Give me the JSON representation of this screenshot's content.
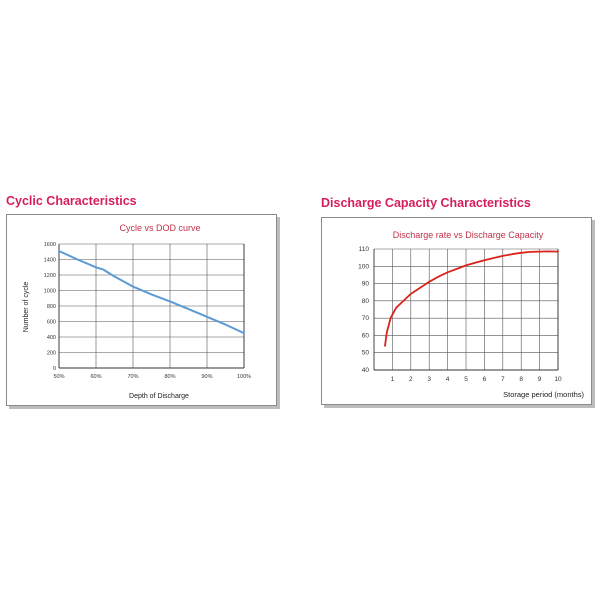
{
  "left": {
    "section_title": "Cyclic Characteristics",
    "chart_data": {
      "type": "line",
      "title": "Cycle vs DOD curve",
      "xlabel": "Depth of Discharge",
      "ylabel": "Number of cycle",
      "x_ticks": [
        "50%",
        "60%",
        "70%",
        "80%",
        "90%",
        "100%"
      ],
      "y_ticks": [
        "0",
        "200",
        "400",
        "600",
        "800",
        "1000",
        "1200",
        "1400",
        "1600"
      ],
      "xlim": [
        50,
        100
      ],
      "ylim": [
        0,
        1600
      ],
      "grid": true,
      "series": [
        {
          "color": "#5b9bd5",
          "x": [
            50,
            55,
            60,
            62,
            65,
            70,
            75,
            80,
            85,
            90,
            95,
            100
          ],
          "y": [
            1510,
            1400,
            1300,
            1270,
            1180,
            1050,
            950,
            860,
            760,
            660,
            560,
            450
          ]
        }
      ]
    }
  },
  "right": {
    "section_title": "Discharge Capacity Characteristics",
    "chart_data": {
      "type": "line",
      "title": "Discharge rate vs Discharge Capacity",
      "xlabel": "Storage period (months)",
      "ylabel": "",
      "x_ticks": [
        "1",
        "2",
        "3",
        "4",
        "5",
        "6",
        "7",
        "8",
        "9",
        "10"
      ],
      "y_ticks": [
        "40",
        "50",
        "60",
        "70",
        "80",
        "90",
        "100",
        "110"
      ],
      "xlim": [
        0,
        10
      ],
      "ylim": [
        40,
        110
      ],
      "grid": true,
      "series": [
        {
          "color": "#d9231b",
          "x": [
            0.6,
            0.7,
            0.9,
            1.2,
            1.6,
            2,
            2.5,
            3,
            3.5,
            4,
            4.5,
            5,
            5.5,
            6,
            6.5,
            7,
            7.5,
            8,
            8.5,
            9,
            9.5,
            10
          ],
          "y": [
            54,
            62,
            70,
            76,
            80,
            84,
            87.5,
            91,
            94,
            96.5,
            98.5,
            100.5,
            102,
            103.5,
            104.8,
            106,
            107,
            107.8,
            108.3,
            108.5,
            108.6,
            108.5
          ]
        }
      ]
    }
  }
}
